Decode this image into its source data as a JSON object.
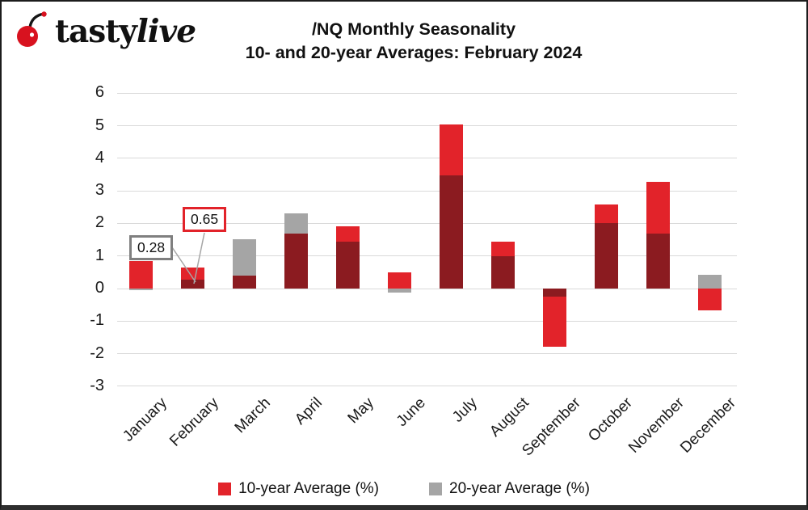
{
  "logo": {
    "brand_tasty": "tasty",
    "brand_live": "live",
    "icon": "cherry-icon"
  },
  "title": {
    "line1": "/NQ Monthly Seasonality",
    "line2": "10- and 20-year Averages: February 2024"
  },
  "chart_data": {
    "type": "bar",
    "title": "/NQ Monthly Seasonality 10- and 20-year Averages: February 2024",
    "categories": [
      "January",
      "February",
      "March",
      "April",
      "May",
      "June",
      "July",
      "August",
      "September",
      "October",
      "November",
      "December"
    ],
    "series": [
      {
        "name": "10-year Average (%)",
        "color": "#e2232a",
        "values": [
          0.85,
          0.65,
          0.4,
          1.68,
          1.92,
          0.51,
          5.05,
          1.45,
          -1.8,
          2.58,
          3.29,
          -0.67
        ]
      },
      {
        "name": "20-year Average (%)",
        "color": "#a5a5a5",
        "values": [
          -0.05,
          0.28,
          1.52,
          2.3,
          1.45,
          -0.12,
          3.48,
          1.0,
          -0.25,
          2.0,
          1.7,
          0.42
        ]
      }
    ],
    "overlap_color": "#8b1b20",
    "xlabel": "",
    "ylabel": "",
    "ylim": [
      -3,
      6
    ],
    "yticks": [
      6,
      5,
      4,
      3,
      2,
      1,
      0,
      -1,
      -2,
      -3
    ],
    "grid": true,
    "legend_position": "bottom",
    "annotations": [
      {
        "text": "0.28",
        "refers_to": "February 20-year Average",
        "border_color": "#7f7f7f"
      },
      {
        "text": "0.65",
        "refers_to": "February 10-year Average",
        "border_color": "#e2232a"
      }
    ]
  },
  "legend": {
    "items": [
      {
        "label": "10-year Average (%)",
        "color": "#e2232a"
      },
      {
        "label": "20-year Average (%)",
        "color": "#a5a5a5"
      }
    ]
  }
}
